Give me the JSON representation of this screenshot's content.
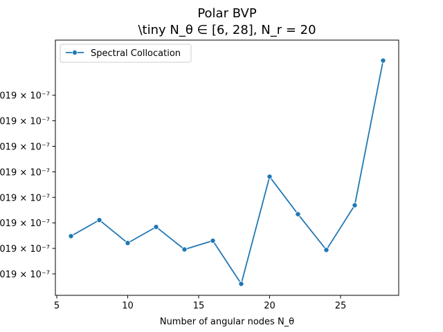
{
  "chart_data": {
    "type": "line",
    "title_line1": "Polar BVP",
    "title_line2": "\\tiny N_θ ∈ [6, 28], N_r = 20",
    "xlabel": "Number of angular nodes N_θ",
    "ylabel": "",
    "xlim": [
      4.9,
      29.1
    ],
    "xticks": [
      5,
      10,
      15,
      20,
      25
    ],
    "ylim": [
      0.0,
      1.0
    ],
    "ytick_labels": [
      "019 × 10⁻⁷",
      "019 × 10⁻⁷",
      "019 × 10⁻⁷",
      "019 × 10⁻⁷",
      "019 × 10⁻⁷",
      "019 × 10⁻⁷",
      "019 × 10⁻⁷",
      "019 × 10⁻⁷"
    ],
    "ytick_positions": [
      0.084,
      0.184,
      0.284,
      0.384,
      0.484,
      0.584,
      0.684,
      0.784
    ],
    "grid": false,
    "legend_position": "top-left",
    "series": [
      {
        "name": "Spectral Collocation",
        "color": "#1f77b4",
        "marker": "circle",
        "x": [
          6,
          8,
          10,
          12,
          14,
          16,
          18,
          20,
          22,
          24,
          26,
          28
        ],
        "y": [
          0.232,
          0.295,
          0.205,
          0.268,
          0.18,
          0.214,
          0.045,
          0.465,
          0.318,
          0.178,
          0.353,
          0.92
        ]
      }
    ]
  }
}
